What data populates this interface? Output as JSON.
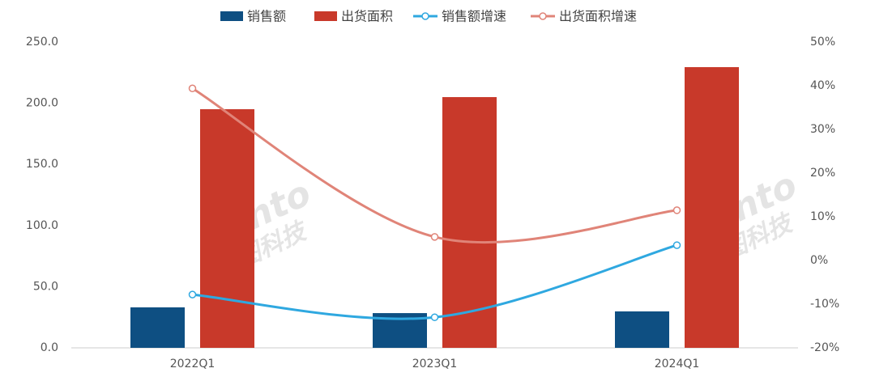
{
  "chart_data": {
    "type": "bar-line",
    "categories": [
      "2022Q1",
      "2023Q1",
      "2024Q1"
    ],
    "series": [
      {
        "name": "销售额",
        "type": "bar",
        "color": "#0e4f82",
        "values": [
          33.1,
          28.4,
          29.8
        ]
      },
      {
        "name": "出货面积",
        "type": "bar",
        "color": "#c8392a",
        "values": [
          195.1,
          205.0,
          229.5
        ]
      },
      {
        "name": "销售额增速",
        "type": "line",
        "axis": "y2",
        "color": "#2fa8e0",
        "values": [
          -7.8,
          -13.0,
          3.5
        ]
      },
      {
        "name": "出货面积增速",
        "type": "line",
        "axis": "y2",
        "color": "#e08478",
        "values": [
          39.4,
          5.4,
          11.5
        ]
      }
    ],
    "ylim": [
      0,
      250
    ],
    "yticks": [
      {
        "value": 0,
        "label": "0.0"
      },
      {
        "value": 50,
        "label": "50.0"
      },
      {
        "value": 100,
        "label": "100.0"
      },
      {
        "value": 150,
        "label": "150.0"
      },
      {
        "value": 200,
        "label": "200.0"
      },
      {
        "value": 250,
        "label": "250.0"
      }
    ],
    "y2lim": [
      -20,
      50
    ],
    "y2ticks": [
      {
        "value": -20,
        "label": "-20%"
      },
      {
        "value": -10,
        "label": "-10%"
      },
      {
        "value": 0,
        "label": "0%"
      },
      {
        "value": 10,
        "label": "10%"
      },
      {
        "value": 20,
        "label": "20%"
      },
      {
        "value": 30,
        "label": "30%"
      },
      {
        "value": 40,
        "label": "40%"
      },
      {
        "value": 50,
        "label": "50%"
      }
    ],
    "watermark": [
      "Runto",
      "洛图科技"
    ]
  }
}
